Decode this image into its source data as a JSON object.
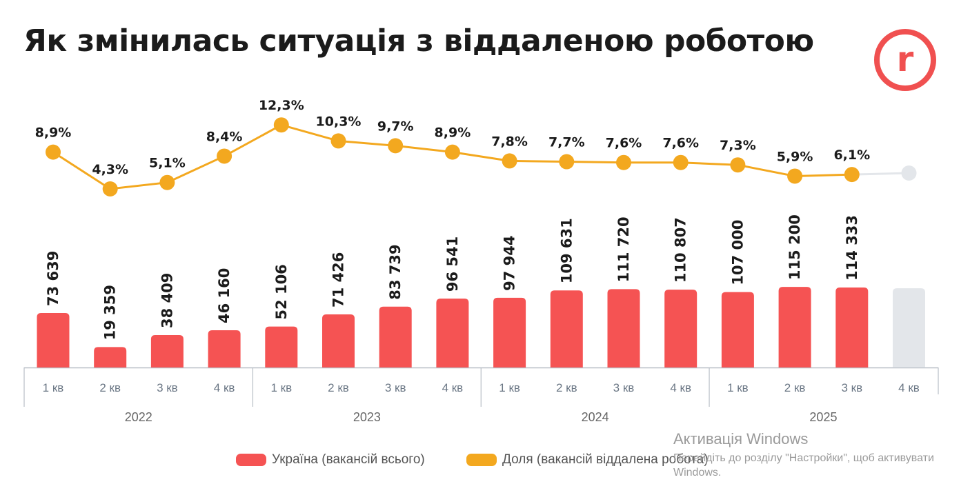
{
  "title": "Як змінилась ситуація з віддаленою роботою",
  "logo": {
    "letter": "r",
    "color": "#f05050"
  },
  "chart_data": {
    "type": "bar+line",
    "categories": [
      "1 кв",
      "2 кв",
      "3 кв",
      "4 кв",
      "1 кв",
      "2 кв",
      "3 кв",
      "4 кв",
      "1 кв",
      "2 кв",
      "3 кв",
      "4 кв",
      "1 кв",
      "2 кв",
      "3 кв",
      "4 кв"
    ],
    "groups": [
      {
        "label": "2022",
        "span": 4
      },
      {
        "label": "2023",
        "span": 4
      },
      {
        "label": "2024",
        "span": 4
      },
      {
        "label": "2025",
        "span": 4
      }
    ],
    "series": [
      {
        "name": "Україна (вакансій всього)",
        "type": "bar",
        "color": "#f55353",
        "values": [
          73639,
          19359,
          38409,
          46160,
          52106,
          71426,
          83739,
          96541,
          97944,
          109631,
          111720,
          110807,
          107000,
          115200,
          114333,
          null
        ],
        "labels": [
          "73 639",
          "19 359",
          "38 409",
          "46 160",
          "52 106",
          "71 426",
          "83 739",
          "96 541",
          "97 944",
          "109 631",
          "111 720",
          "110 807",
          "107 000",
          "115 200",
          "114 333",
          ""
        ]
      },
      {
        "name": "Доля (вакансій віддалена робота)",
        "type": "line",
        "color": "#f3a81f",
        "values": [
          8.9,
          4.3,
          5.1,
          8.4,
          12.3,
          10.3,
          9.7,
          8.9,
          7.8,
          7.7,
          7.6,
          7.6,
          7.3,
          5.9,
          6.1,
          null
        ],
        "labels": [
          "8,9%",
          "4,3%",
          "5,1%",
          "8,4%",
          "12,3%",
          "10,3%",
          "9,7%",
          "8,9%",
          "7,8%",
          "7,7%",
          "7,6%",
          "7,6%",
          "7,3%",
          "5,9%",
          "6,1%",
          ""
        ]
      }
    ],
    "placeholder_color": "#e3e6ea",
    "legend_position": "bottom",
    "grid": false
  },
  "watermark": {
    "title": "Активація Windows",
    "subtitle_line1": "Перейдіть до розділу \"Настройки\", щоб активувати",
    "subtitle_line2": "Windows."
  }
}
